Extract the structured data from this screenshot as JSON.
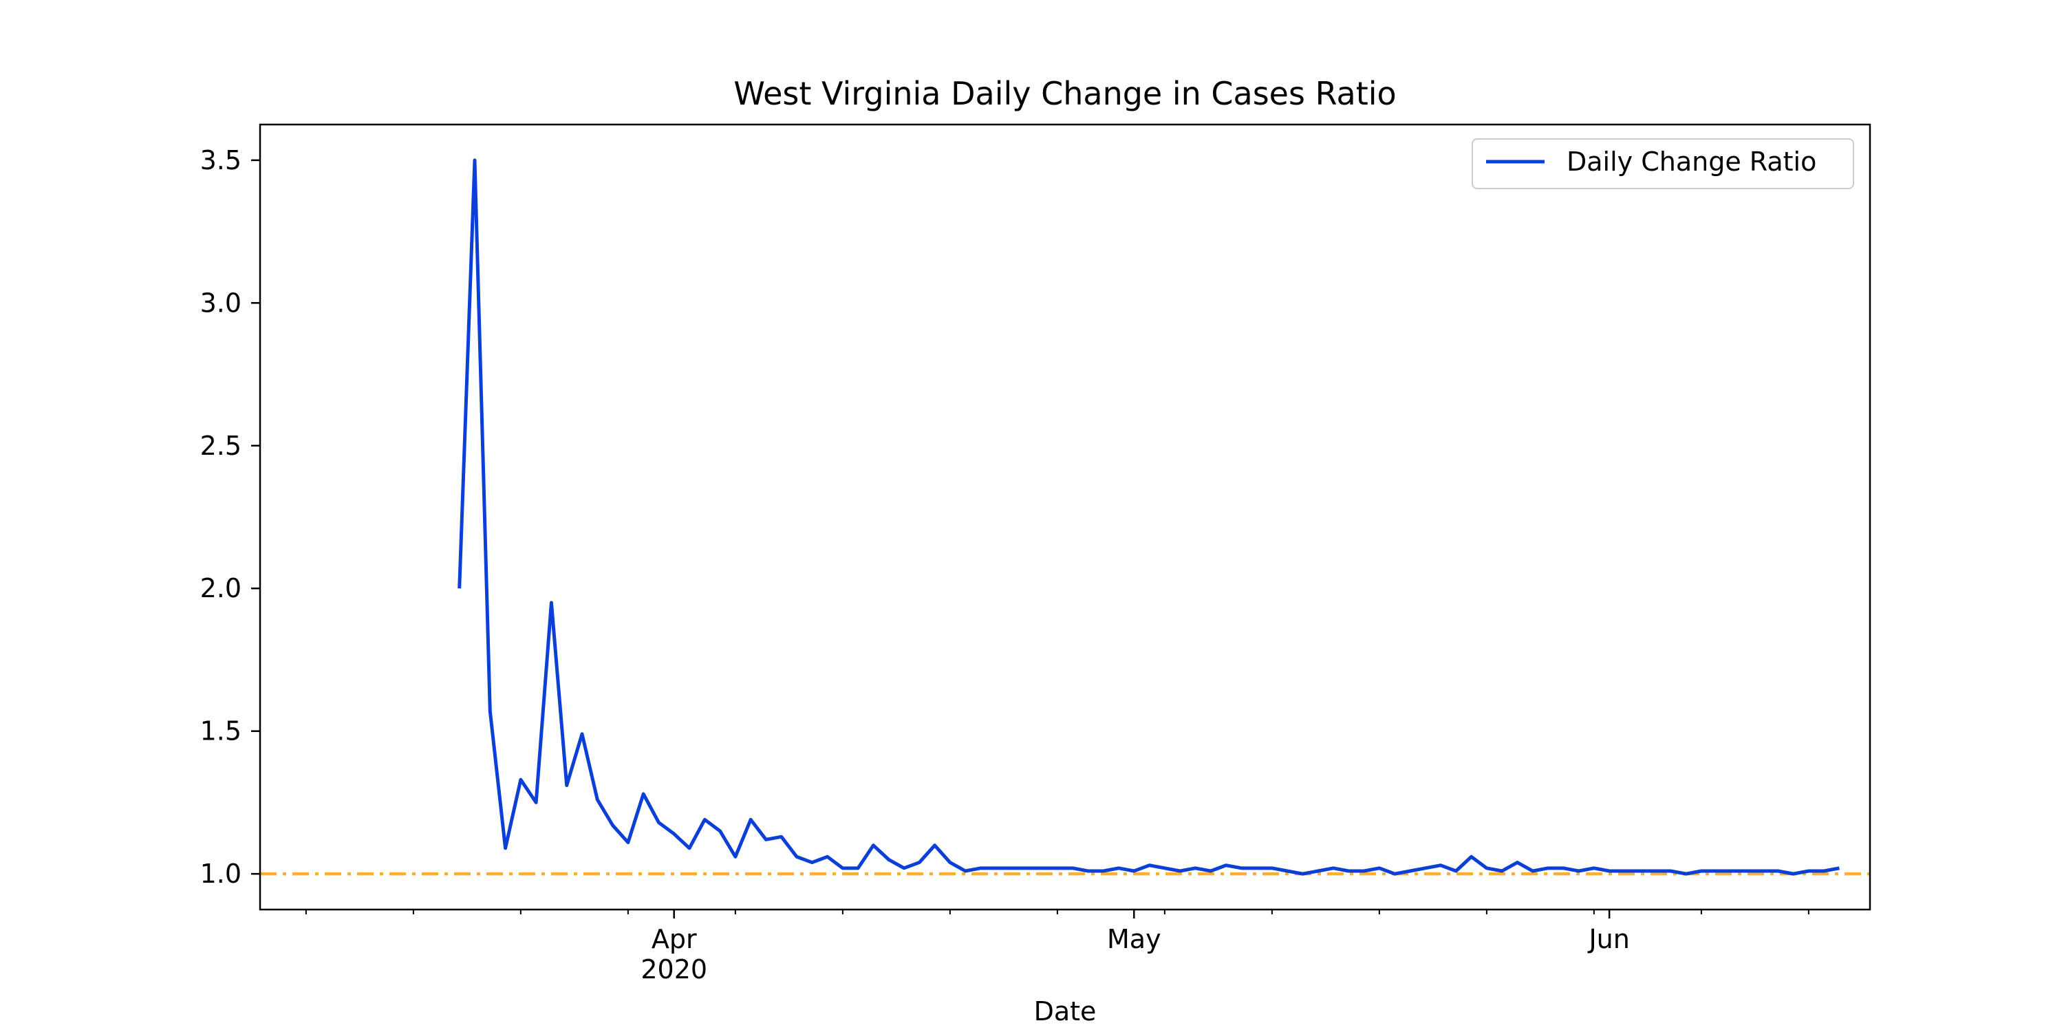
{
  "chart_data": {
    "type": "line",
    "title": "West Virginia Daily Change in Cases Ratio",
    "xlabel": "Date",
    "ylabel": "",
    "xlim": [
      "2020-03-05",
      "2020-06-18"
    ],
    "ylim": [
      0.875,
      3.625
    ],
    "x_major_ticks": [
      {
        "date": "2020-04-01",
        "label": "Apr",
        "sublabel": "2020"
      },
      {
        "date": "2020-05-01",
        "label": "May",
        "sublabel": ""
      },
      {
        "date": "2020-06-01",
        "label": "Jun",
        "sublabel": ""
      }
    ],
    "y_ticks": [
      1.0,
      1.5,
      2.0,
      2.5,
      3.0,
      3.5
    ],
    "y_tick_labels": [
      "1.0",
      "1.5",
      "2.0",
      "2.5",
      "3.0",
      "3.5"
    ],
    "grid": false,
    "legend_position": "top-right",
    "reference_line": {
      "y": 1.0,
      "color": "#fbb034",
      "style": "dash-dot"
    },
    "series": [
      {
        "name": "Daily Change Ratio",
        "color": "#0b3fd6",
        "x_start": "2020-03-18",
        "values": [
          2.0,
          3.5,
          1.57,
          1.09,
          1.33,
          1.25,
          1.95,
          1.31,
          1.49,
          1.26,
          1.17,
          1.11,
          1.28,
          1.18,
          1.14,
          1.09,
          1.19,
          1.15,
          1.06,
          1.19,
          1.12,
          1.13,
          1.06,
          1.04,
          1.06,
          1.02,
          1.02,
          1.1,
          1.05,
          1.02,
          1.04,
          1.1,
          1.04,
          1.01,
          1.02,
          1.02,
          1.02,
          1.02,
          1.02,
          1.02,
          1.02,
          1.01,
          1.01,
          1.02,
          1.01,
          1.03,
          1.02,
          1.01,
          1.02,
          1.01,
          1.03,
          1.02,
          1.02,
          1.02,
          1.01,
          1.0,
          1.01,
          1.02,
          1.01,
          1.01,
          1.02,
          1.0,
          1.01,
          1.02,
          1.03,
          1.01,
          1.06,
          1.02,
          1.01,
          1.04,
          1.01,
          1.02,
          1.02,
          1.01,
          1.02,
          1.01,
          1.01,
          1.01,
          1.01,
          1.01,
          1.0,
          1.01,
          1.01,
          1.01,
          1.01,
          1.01,
          1.01,
          1.0,
          1.01,
          1.01,
          1.02
        ]
      }
    ]
  }
}
